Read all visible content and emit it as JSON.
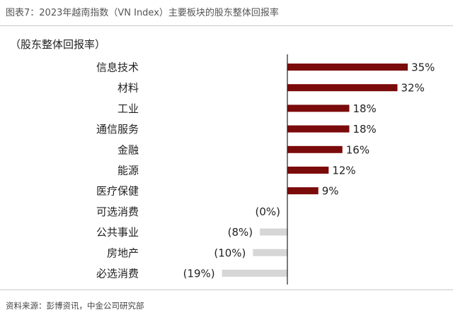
{
  "figure_title": "图表7：2023年越南指数（VN Index）主要板块的股东整体回报率",
  "source": "资料来源：彭博资讯，中金公司研究部",
  "chart_data": {
    "type": "bar",
    "orientation": "horizontal",
    "title": "（股东整体回报率）",
    "categories": [
      "信息技术",
      "材料",
      "工业",
      "通信服务",
      "金融",
      "能源",
      "医疗保健",
      "可选消费",
      "公共事业",
      "房地产",
      "必选消费"
    ],
    "values": [
      35,
      32,
      18,
      18,
      16,
      12,
      9,
      0,
      -8,
      -10,
      -19
    ],
    "value_labels": [
      "35%",
      "32%",
      "18%",
      "18%",
      "16%",
      "12%",
      "9%",
      "(0%)",
      "(8%)",
      "(10%)",
      "(19%)"
    ],
    "unit": "%",
    "colors": {
      "positive": "#7b0a0a",
      "negative": "#d6d6d6",
      "axis": "#222222"
    },
    "grid": false,
    "legend": false
  }
}
